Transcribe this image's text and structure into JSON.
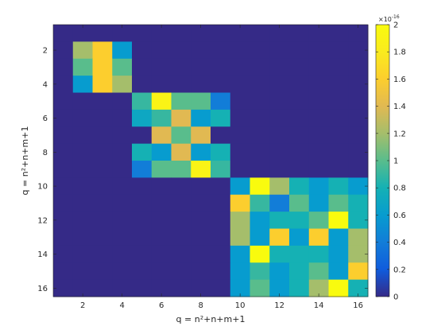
{
  "chart_data": {
    "type": "heatmap",
    "title": "",
    "xlabel": "q = n²+n+m+1",
    "ylabel": "q = n²+n+m+1",
    "x": [
      1,
      2,
      3,
      4,
      5,
      6,
      7,
      8,
      9,
      10,
      11,
      12,
      13,
      14,
      15,
      16
    ],
    "y": [
      1,
      2,
      3,
      4,
      5,
      6,
      7,
      8,
      9,
      10,
      11,
      12,
      13,
      14,
      15,
      16
    ],
    "x_ticks": [
      2,
      4,
      6,
      8,
      10,
      12,
      14,
      16
    ],
    "y_ticks": [
      2,
      4,
      6,
      8,
      10,
      12,
      14,
      16
    ],
    "colorbar": {
      "colormap": "parula",
      "min": 0,
      "max": 2,
      "ticks": [
        0,
        0.2,
        0.4,
        0.6,
        0.8,
        1,
        1.2,
        1.4,
        1.6,
        1.8,
        2
      ],
      "tick_labels": [
        "0",
        "0.2",
        "0.4",
        "0.6",
        "0.8",
        "1",
        "1.2",
        "1.4",
        "1.6",
        "1.8",
        "2"
      ],
      "exponent_base": "×10",
      "exponent_power": "-16"
    },
    "values": [
      [
        0,
        0,
        0,
        0,
        0,
        0,
        0,
        0,
        0,
        0,
        0,
        0,
        0,
        0,
        0,
        0
      ],
      [
        0,
        1.2,
        1.6,
        0.6,
        0,
        0,
        0,
        0,
        0,
        0,
        0,
        0,
        0,
        0,
        0,
        0
      ],
      [
        0,
        1.0,
        1.6,
        1.0,
        0,
        0,
        0,
        0,
        0,
        0,
        0,
        0,
        0,
        0,
        0,
        0
      ],
      [
        0,
        0.6,
        1.6,
        1.2,
        0,
        0,
        0,
        0,
        0,
        0,
        0,
        0,
        0,
        0,
        0,
        0
      ],
      [
        0,
        0,
        0,
        0,
        0.9,
        1.9,
        1.0,
        1.0,
        0.4,
        0,
        0,
        0,
        0,
        0,
        0,
        0
      ],
      [
        0,
        0,
        0,
        0,
        0.7,
        0.9,
        1.4,
        0.6,
        0.8,
        0,
        0,
        0,
        0,
        0,
        0,
        0
      ],
      [
        0,
        0,
        0,
        0,
        0,
        1.4,
        1.0,
        1.4,
        0,
        0,
        0,
        0,
        0,
        0,
        0,
        0
      ],
      [
        0,
        0,
        0,
        0,
        0.8,
        0.6,
        1.4,
        0.6,
        0.8,
        0,
        0,
        0,
        0,
        0,
        0,
        0
      ],
      [
        0,
        0,
        0,
        0,
        0.4,
        1.0,
        1.0,
        1.9,
        0.9,
        0,
        0,
        0,
        0,
        0,
        0,
        0
      ],
      [
        0,
        0,
        0,
        0,
        0,
        0,
        0,
        0,
        0,
        0.6,
        2.0,
        1.2,
        0.8,
        0.6,
        0.8,
        0.6
      ],
      [
        0,
        0,
        0,
        0,
        0,
        0,
        0,
        0,
        0,
        1.6,
        0.9,
        0.4,
        1.0,
        0.6,
        1.0,
        0.8
      ],
      [
        0,
        0,
        0,
        0,
        0,
        0,
        0,
        0,
        0,
        1.2,
        0.6,
        0.8,
        0.8,
        1.0,
        2.0,
        0.8
      ],
      [
        0,
        0,
        0,
        0,
        0,
        0,
        0,
        0,
        0,
        1.2,
        0.6,
        1.6,
        0.6,
        1.6,
        0.6,
        1.2
      ],
      [
        0,
        0,
        0,
        0,
        0,
        0,
        0,
        0,
        0,
        0.6,
        2.0,
        0.8,
        0.8,
        0.8,
        0.6,
        1.2
      ],
      [
        0,
        0,
        0,
        0,
        0,
        0,
        0,
        0,
        0,
        0.6,
        0.9,
        0.6,
        0.8,
        1.0,
        0.6,
        1.6
      ],
      [
        0,
        0,
        0,
        0,
        0,
        0,
        0,
        0,
        0,
        0.6,
        1.0,
        0.6,
        0.8,
        1.2,
        2.0,
        0.8
      ]
    ]
  }
}
